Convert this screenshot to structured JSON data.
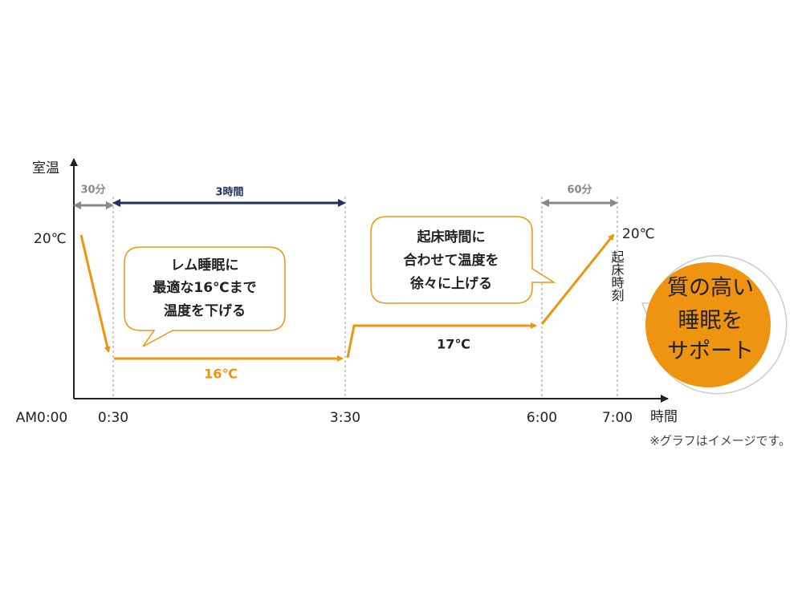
{
  "axis": {
    "y_label": "室温",
    "x_label": "時間"
  },
  "time_labels": [
    "AM0:00",
    "0:30",
    "3:30",
    "6:00",
    "7:00"
  ],
  "durations": [
    "30分",
    "3時間",
    "60分"
  ],
  "temperatures": {
    "start": "20℃",
    "deep_sleep": "16℃",
    "middle": "17℃",
    "wake": "20℃"
  },
  "wake_label": "起床時刻",
  "bubble_1": [
    "レム睡眠に",
    "最適な16℃まで",
    "温度を下げる"
  ],
  "bubble_2": [
    "起床時間に",
    "合わせて温度を",
    "徐々に上げる"
  ],
  "badge": [
    "質の高い",
    "睡眠を",
    "サポート"
  ],
  "note": "※グラフはイメージです。"
}
